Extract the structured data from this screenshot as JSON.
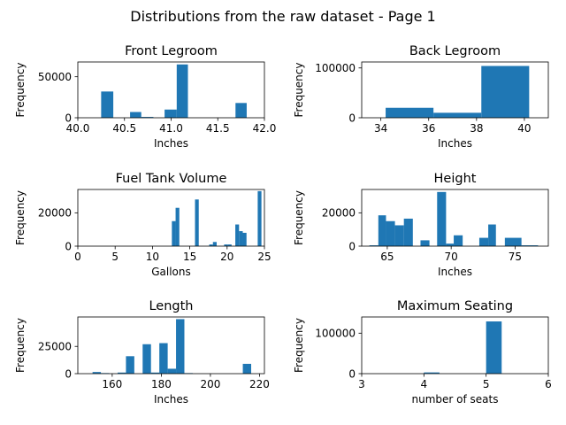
{
  "figure": {
    "suptitle": "Distributions from the raw dataset - Page 1"
  },
  "colors": {
    "bar": "#1f77b4",
    "axis": "#000000",
    "background": "#ffffff"
  },
  "chart_data": [
    {
      "type": "bar",
      "title": "Front Legroom",
      "xlabel": "Inches",
      "ylabel": "Frequency",
      "xlim": [
        40.0,
        42.0
      ],
      "ylim": [
        0,
        68000
      ],
      "xticks": [
        40.0,
        40.5,
        41.0,
        41.5,
        42.0
      ],
      "xticklabels": [
        "40.0",
        "40.5",
        "41.0",
        "41.5",
        "42.0"
      ],
      "yticks": [
        0,
        50000
      ],
      "yticklabels": [
        "0",
        "50000"
      ],
      "bins": [
        {
          "x0": 40.25,
          "x1": 40.38,
          "value": 32000
        },
        {
          "x0": 40.56,
          "x1": 40.68,
          "value": 7000
        },
        {
          "x0": 40.68,
          "x1": 40.81,
          "value": 1000
        },
        {
          "x0": 40.81,
          "x1": 40.93,
          "value": 0
        },
        {
          "x0": 40.93,
          "x1": 41.06,
          "value": 10000
        },
        {
          "x0": 41.06,
          "x1": 41.18,
          "value": 65000
        },
        {
          "x0": 41.69,
          "x1": 41.81,
          "value": 18000
        }
      ]
    },
    {
      "type": "bar",
      "title": "Back Legroom",
      "xlabel": "Inches",
      "ylabel": "Frequency",
      "xlim": [
        33.2,
        41.0
      ],
      "ylim": [
        0,
        112000
      ],
      "xticks": [
        34,
        36,
        38,
        40
      ],
      "xticklabels": [
        "34",
        "36",
        "38",
        "40"
      ],
      "yticks": [
        0,
        100000
      ],
      "yticklabels": [
        "0",
        "100000"
      ],
      "bins": [
        {
          "x0": 34.2,
          "x1": 36.2,
          "value": 20000
        },
        {
          "x0": 36.2,
          "x1": 38.2,
          "value": 10000
        },
        {
          "x0": 38.2,
          "x1": 40.2,
          "value": 104000
        }
      ]
    },
    {
      "type": "bar",
      "title": "Fuel Tank Volume",
      "xlabel": "Gallons",
      "ylabel": "Frequency",
      "xlim": [
        0,
        25
      ],
      "ylim": [
        0,
        34000
      ],
      "xticks": [
        0,
        5,
        10,
        15,
        20,
        25
      ],
      "xticklabels": [
        "0",
        "5",
        "10",
        "15",
        "20",
        "25"
      ],
      "yticks": [
        0,
        20000
      ],
      "yticklabels": [
        "0",
        "20000"
      ],
      "bins": [
        {
          "x0": 12.6,
          "x1": 13.1,
          "value": 15000
        },
        {
          "x0": 13.1,
          "x1": 13.6,
          "value": 23000
        },
        {
          "x0": 13.6,
          "x1": 14.1,
          "value": 0
        },
        {
          "x0": 15.7,
          "x1": 16.2,
          "value": 28000
        },
        {
          "x0": 17.6,
          "x1": 18.1,
          "value": 1000
        },
        {
          "x0": 18.1,
          "x1": 18.6,
          "value": 2500
        },
        {
          "x0": 19.6,
          "x1": 20.1,
          "value": 1000
        },
        {
          "x0": 20.1,
          "x1": 20.6,
          "value": 1000
        },
        {
          "x0": 21.1,
          "x1": 21.6,
          "value": 13000
        },
        {
          "x0": 21.6,
          "x1": 22.1,
          "value": 9000
        },
        {
          "x0": 22.1,
          "x1": 22.6,
          "value": 8000
        },
        {
          "x0": 24.1,
          "x1": 24.6,
          "value": 33000
        }
      ]
    },
    {
      "type": "bar",
      "title": "Height",
      "xlabel": "Inches",
      "ylabel": "Frequency",
      "xlim": [
        63.0,
        77.6
      ],
      "ylim": [
        0,
        34000
      ],
      "xticks": [
        65,
        70,
        75
      ],
      "xticklabels": [
        "65",
        "70",
        "75"
      ],
      "yticks": [
        0,
        20000
      ],
      "yticklabels": [
        "0",
        "20000"
      ],
      "bins": [
        {
          "x0": 63.6,
          "x1": 64.3,
          "value": 500
        },
        {
          "x0": 64.3,
          "x1": 64.9,
          "value": 18500
        },
        {
          "x0": 64.9,
          "x1": 65.6,
          "value": 15000
        },
        {
          "x0": 65.6,
          "x1": 66.3,
          "value": 12500
        },
        {
          "x0": 66.3,
          "x1": 67.0,
          "value": 16500
        },
        {
          "x0": 67.6,
          "x1": 68.3,
          "value": 3500
        },
        {
          "x0": 68.9,
          "x1": 69.6,
          "value": 32500
        },
        {
          "x0": 69.6,
          "x1": 70.2,
          "value": 1500
        },
        {
          "x0": 70.2,
          "x1": 70.9,
          "value": 6500
        },
        {
          "x0": 72.2,
          "x1": 72.9,
          "value": 5000
        },
        {
          "x0": 72.9,
          "x1": 73.5,
          "value": 13000
        },
        {
          "x0": 74.2,
          "x1": 75.5,
          "value": 5000
        },
        {
          "x0": 75.5,
          "x1": 76.8,
          "value": 500
        }
      ]
    },
    {
      "type": "bar",
      "title": "Length",
      "xlabel": "Inches",
      "ylabel": "Frequency",
      "xlim": [
        146,
        222
      ],
      "ylim": [
        0,
        52000
      ],
      "xticks": [
        160,
        180,
        200,
        220
      ],
      "xticklabels": [
        "160",
        "180",
        "200",
        "220"
      ],
      "yticks": [
        0,
        25000
      ],
      "yticklabels": [
        "0",
        "25000"
      ],
      "bins": [
        {
          "x0": 152.0,
          "x1": 155.4,
          "value": 1500
        },
        {
          "x0": 155.4,
          "x1": 158.8,
          "value": 500
        },
        {
          "x0": 162.2,
          "x1": 165.6,
          "value": 1000
        },
        {
          "x0": 165.6,
          "x1": 169.0,
          "value": 16000
        },
        {
          "x0": 172.4,
          "x1": 175.8,
          "value": 27000
        },
        {
          "x0": 175.8,
          "x1": 179.2,
          "value": 1000
        },
        {
          "x0": 179.2,
          "x1": 182.6,
          "value": 28000
        },
        {
          "x0": 182.6,
          "x1": 186.0,
          "value": 4500
        },
        {
          "x0": 186.0,
          "x1": 189.4,
          "value": 50000
        },
        {
          "x0": 189.4,
          "x1": 192.8,
          "value": 500
        },
        {
          "x0": 213.2,
          "x1": 216.6,
          "value": 9000
        }
      ]
    },
    {
      "type": "bar",
      "title": "Maximum Seating",
      "xlabel": "number of seats",
      "ylabel": "Frequency",
      "xlim": [
        3,
        6
      ],
      "ylim": [
        0,
        140000
      ],
      "xticks": [
        3,
        4,
        5,
        6
      ],
      "xticklabels": [
        "3",
        "4",
        "5",
        "6"
      ],
      "yticks": [
        0,
        100000
      ],
      "yticklabels": [
        "0",
        "100000"
      ],
      "bins": [
        {
          "x0": 4.0,
          "x1": 4.25,
          "value": 3000
        },
        {
          "x0": 5.0,
          "x1": 5.25,
          "value": 129000
        }
      ]
    }
  ]
}
